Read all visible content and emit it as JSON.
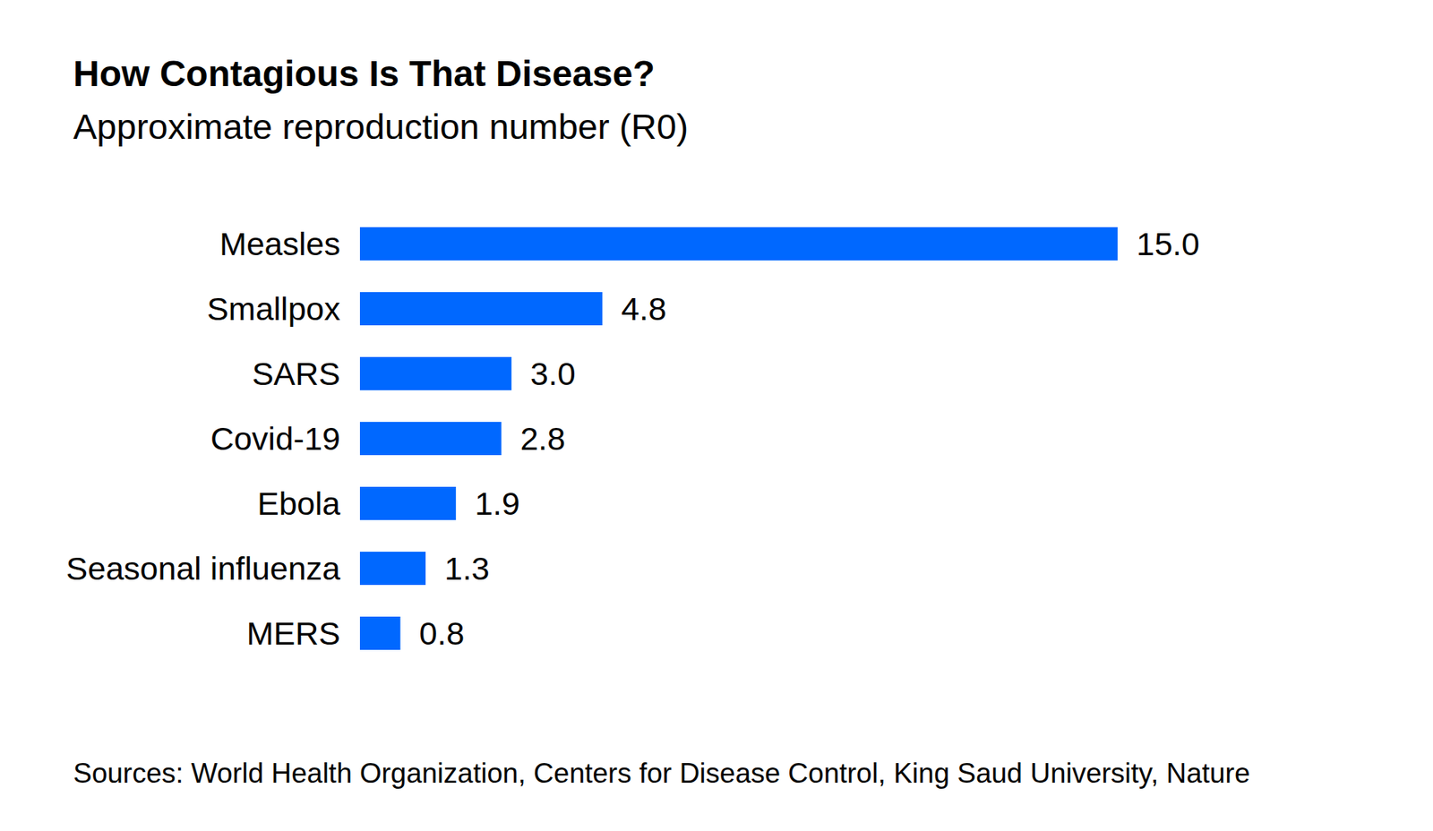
{
  "chart_data": {
    "type": "bar",
    "title": "How Contagious Is That Disease?",
    "subtitle": "Approximate reproduction number (R0)",
    "source": "Sources: World Health Organization, Centers for Disease Control, King Saud University, Nature",
    "orientation": "horizontal",
    "categories": [
      "Measles",
      "Smallpox",
      "SARS",
      "Covid-19",
      "Ebola",
      "Seasonal influenza",
      "MERS"
    ],
    "values": [
      15,
      4.8,
      3,
      2.8,
      1.9,
      1.3,
      0.8
    ],
    "value_labels": [
      "15.0",
      "4.8",
      "3.0",
      "2.8",
      "1.9",
      "1.3",
      "0.8"
    ],
    "data_labels": true,
    "color": "#0068ff",
    "xlim": [
      0,
      15
    ],
    "grid": false,
    "tick_labels": "y"
  }
}
